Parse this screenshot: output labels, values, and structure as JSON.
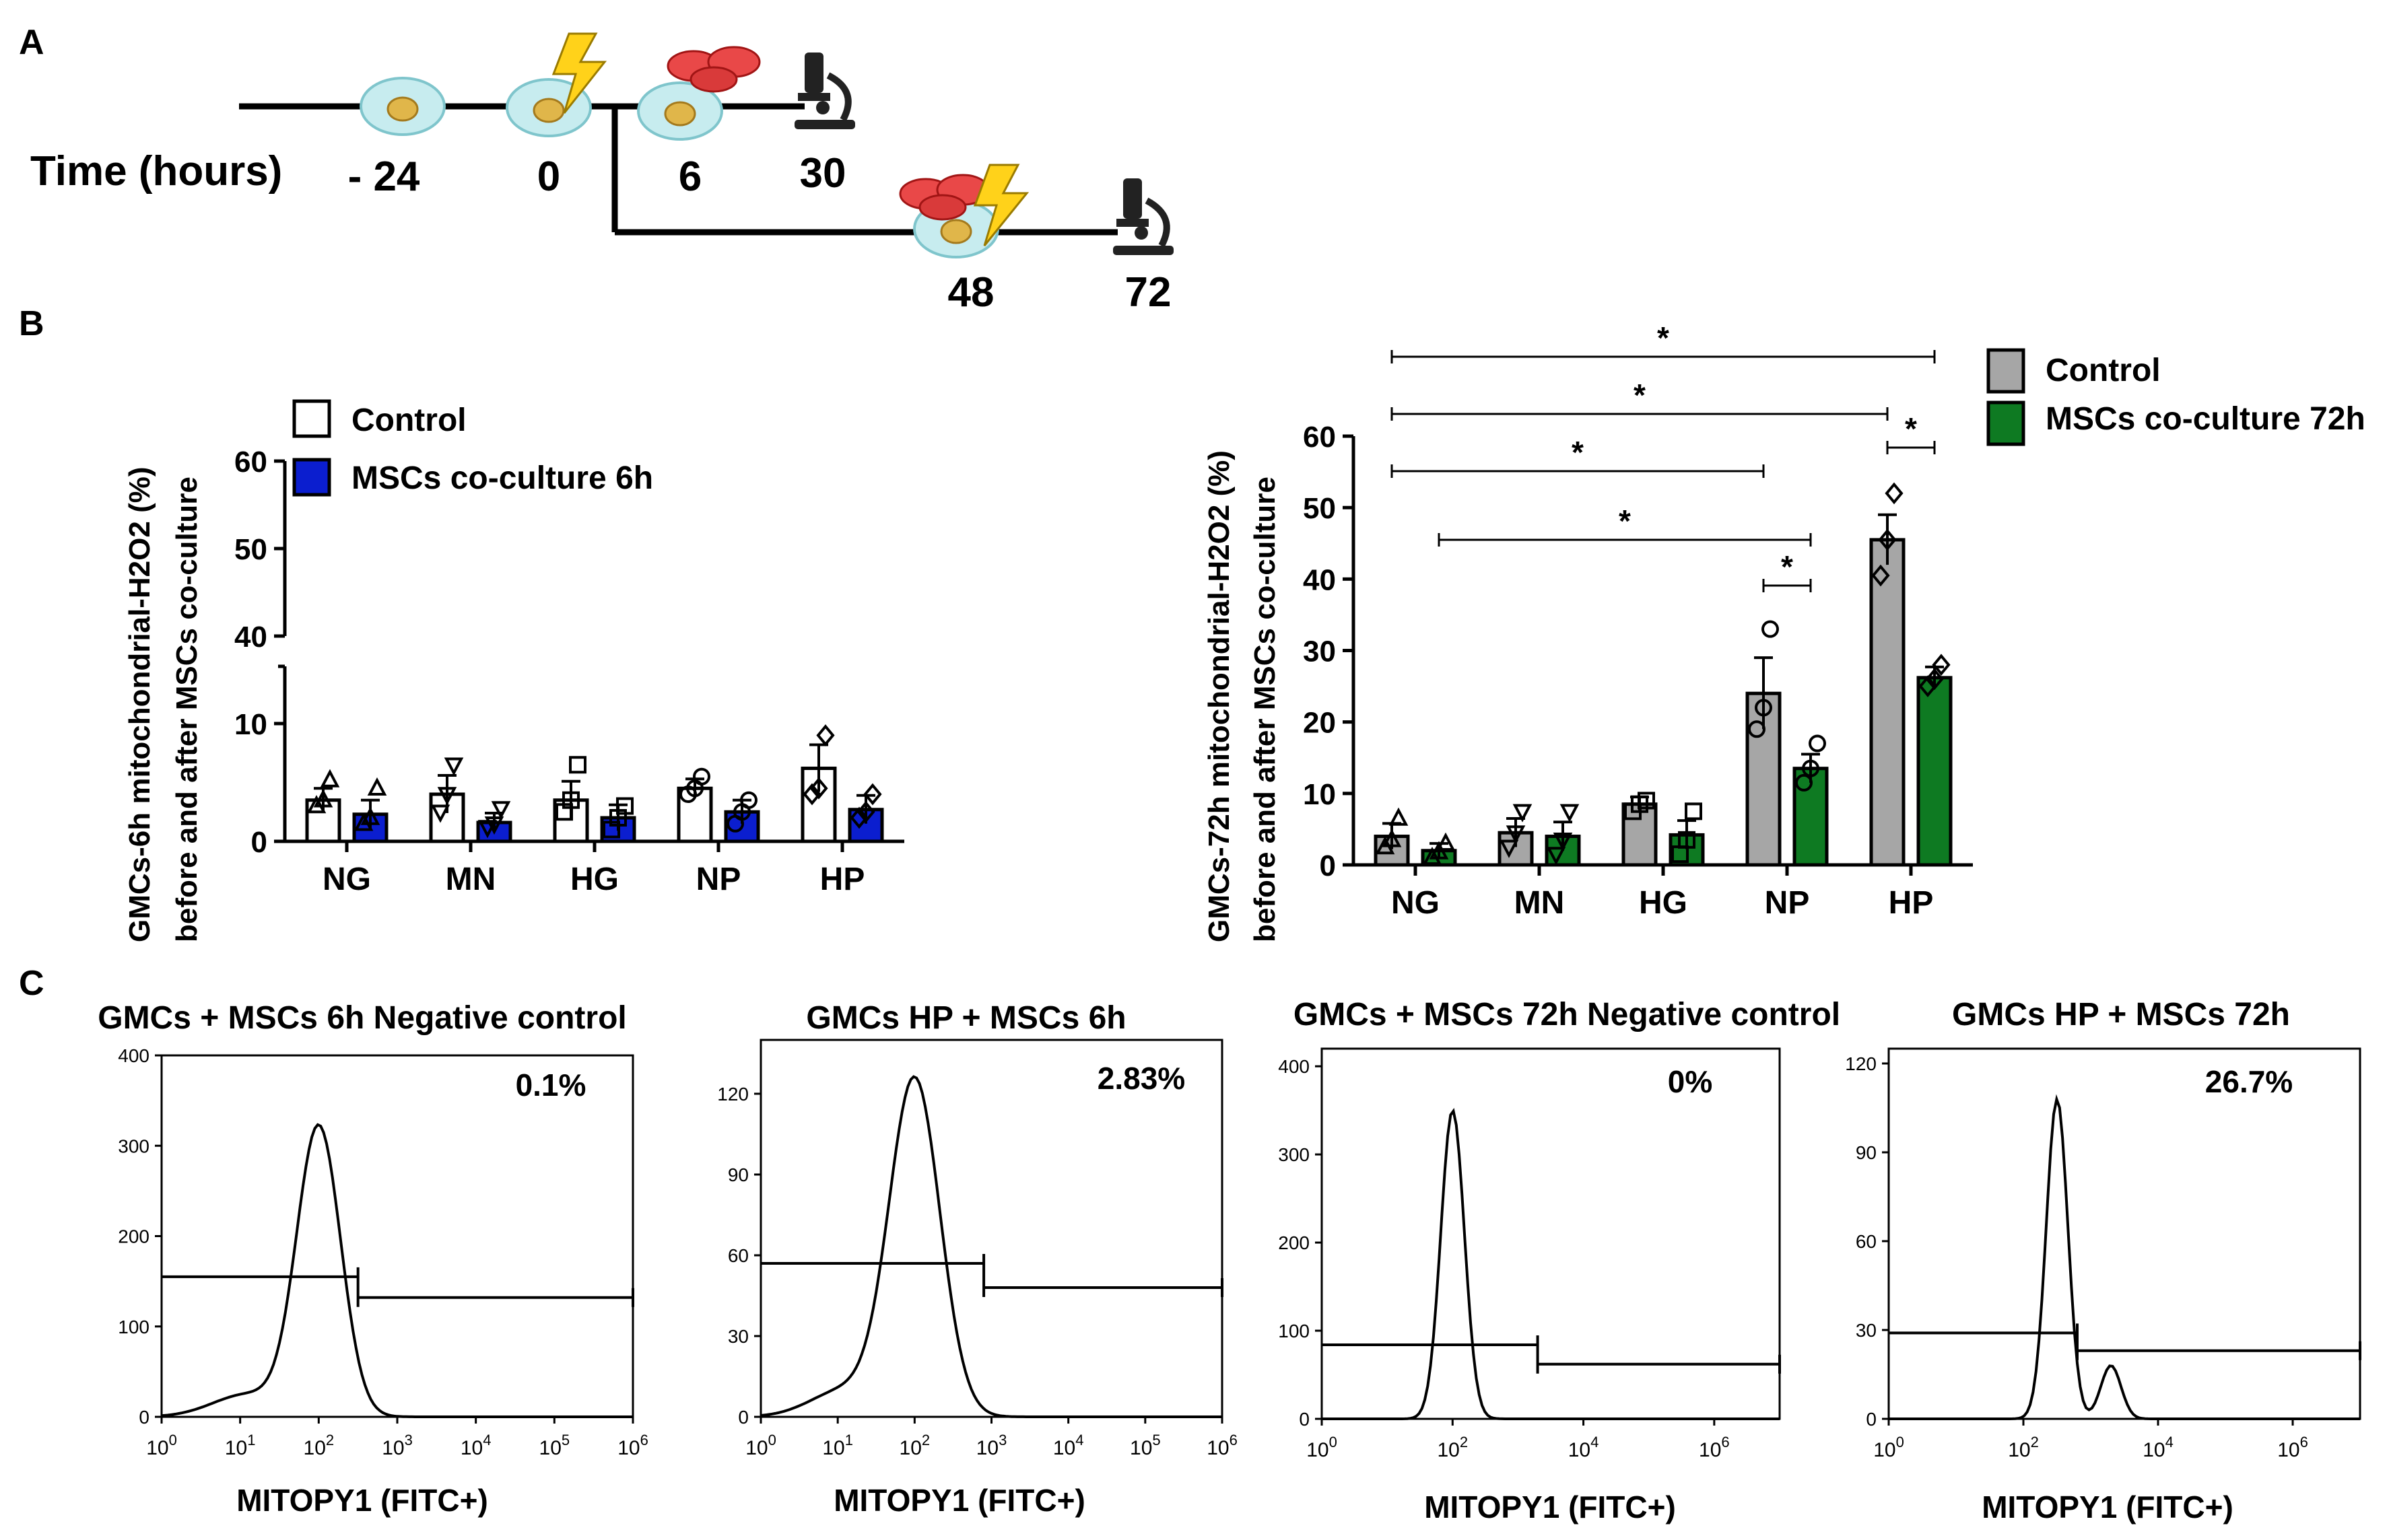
{
  "panel_labels": {
    "a": "A",
    "b": "B",
    "c": "C"
  },
  "timeline": {
    "label": "Time (hours)",
    "times": [
      "- 24",
      "0",
      "6",
      "30",
      "48",
      "72"
    ]
  },
  "chart_data": [
    {
      "type": "bar",
      "id": "B-left",
      "ylabel_line1": "GMCs-6h mitochondrial-H2O2 (%)",
      "ylabel_line2": "before and after MSCs co-culture",
      "categories": [
        "NG",
        "MN",
        "HG",
        "NP",
        "HP"
      ],
      "ylim": [
        0,
        60
      ],
      "axis_break": [
        12,
        38
      ],
      "ticks": [
        0,
        10,
        40,
        50,
        60
      ],
      "legend": [
        "Control",
        "MSCs co-culture 6h"
      ],
      "series": [
        {
          "name": "Control",
          "color": "#ffffff",
          "values": [
            3.5,
            4.0,
            3.5,
            4.5,
            6.2
          ],
          "errors": [
            1.0,
            1.6,
            1.6,
            0.8,
            2.0
          ],
          "points": [
            [
              3.0,
              3.5,
              5.2
            ],
            [
              2.5,
              4.0,
              6.5
            ],
            [
              2.5,
              3.5,
              6.5
            ],
            [
              4.0,
              4.5,
              5.5
            ],
            [
              4.0,
              4.5,
              9.0
            ]
          ],
          "marker": [
            "tri-up",
            "tri-down",
            "square",
            "circle",
            "diamond"
          ]
        },
        {
          "name": "MSCs co-culture 6h",
          "color": "#0b1ecf",
          "values": [
            2.3,
            1.6,
            2.0,
            2.5,
            2.7
          ],
          "errors": [
            1.2,
            0.8,
            1.1,
            1.0,
            1.2
          ],
          "points": [
            [
              1.5,
              2.0,
              4.5
            ],
            [
              1.2,
              1.5,
              2.8
            ],
            [
              1.0,
              2.0,
              3.0
            ],
            [
              1.5,
              2.5,
              3.5
            ],
            [
              2.0,
              2.5,
              4.0
            ]
          ],
          "marker": [
            "tri-up",
            "tri-down",
            "square",
            "circle",
            "diamond"
          ]
        }
      ]
    },
    {
      "type": "bar",
      "id": "B-right",
      "ylabel_line1": "GMCs-72h mitochondrial-H2O2 (%)",
      "ylabel_line2": "before and after MSCs co-culture",
      "categories": [
        "NG",
        "MN",
        "HG",
        "NP",
        "HP"
      ],
      "ylim": [
        0,
        60
      ],
      "ticks": [
        0,
        10,
        20,
        30,
        40,
        50,
        60
      ],
      "legend": [
        "Control",
        "MSCs co-culture 72h"
      ],
      "series": [
        {
          "name": "Control",
          "color": "#a6a6a6",
          "values": [
            4.0,
            4.5,
            8.5,
            24.0,
            45.5
          ],
          "errors": [
            1.8,
            2.0,
            1.0,
            5.0,
            3.5
          ],
          "points": [
            [
              2.5,
              3.5,
              6.5
            ],
            [
              2.5,
              4.5,
              7.5
            ],
            [
              7.5,
              8.5,
              9.0
            ],
            [
              19.0,
              22.0,
              33.0
            ],
            [
              40.5,
              45.5,
              52.0
            ]
          ],
          "marker": [
            "tri-up",
            "tri-down",
            "square",
            "circle",
            "diamond"
          ]
        },
        {
          "name": "MSCs co-culture 72h",
          "color": "#0e7a22",
          "values": [
            2.0,
            4.0,
            4.2,
            13.5,
            26.2
          ],
          "errors": [
            1.0,
            2.0,
            2.0,
            2.0,
            1.5
          ],
          "points": [
            [
              1.0,
              1.8,
              3.0
            ],
            [
              1.5,
              3.5,
              7.5
            ],
            [
              1.5,
              3.5,
              7.5
            ],
            [
              11.5,
              13.5,
              17.0
            ],
            [
              25.0,
              26.0,
              28.0
            ]
          ],
          "marker": [
            "tri-up",
            "tri-down",
            "square",
            "circle",
            "diamond"
          ]
        }
      ],
      "significance": [
        {
          "from": "NG-Control",
          "to": "HP-MSCs",
          "label": "*"
        },
        {
          "from": "NG-Control",
          "to": "HP-Control",
          "label": "*"
        },
        {
          "from": "NG-Control",
          "to": "NP-Control",
          "label": "*"
        },
        {
          "from": "NG-MSCs",
          "to": "NP-MSCs",
          "label": "*"
        },
        {
          "from": "NP-Control",
          "to": "NP-MSCs",
          "label": "*"
        },
        {
          "from": "HP-Control",
          "to": "HP-MSCs",
          "label": "*"
        }
      ]
    },
    {
      "type": "histogram",
      "id": "C-1",
      "title": "GMCs + MSCs 6h Negative control",
      "percent": "0.1%",
      "xlabel": "MITOPY1 (FITC+)",
      "yticks": [
        0,
        100,
        200,
        300,
        400
      ],
      "ymax": 400,
      "xdecades": [
        0,
        6
      ],
      "xticks": [
        0,
        1,
        2,
        3,
        4,
        5,
        6
      ],
      "peak_log": 2.0,
      "peak_height": 320
    },
    {
      "type": "histogram",
      "id": "C-2",
      "title": "GMCs HP + MSCs 6h",
      "percent": "2.83%",
      "xlabel": "MITOPY1 (FITC+)",
      "yticks": [
        0,
        30,
        60,
        90,
        120
      ],
      "ymax": 140,
      "xdecades": [
        0,
        6
      ],
      "xticks": [
        0,
        1,
        2,
        3,
        4,
        5,
        6
      ],
      "peak_log": 2.0,
      "peak_height": 125
    },
    {
      "type": "histogram",
      "id": "C-3",
      "title": "GMCs + MSCs 72h Negative control",
      "percent": "0%",
      "xlabel": "MITOPY1 (FITC+)",
      "yticks": [
        0,
        100,
        200,
        300,
        400
      ],
      "ymax": 420,
      "xdecades": [
        0,
        7
      ],
      "xticks": [
        0,
        2,
        4,
        6
      ],
      "peak_log": 2.0,
      "peak_height": 350
    },
    {
      "type": "histogram",
      "id": "C-4",
      "title": "GMCs HP + MSCs 72h",
      "percent": "26.7%",
      "xlabel": "MITOPY1 (FITC+)",
      "yticks": [
        0,
        30,
        60,
        90,
        120
      ],
      "ymax": 125,
      "xdecades": [
        0,
        7
      ],
      "xticks": [
        0,
        2,
        4,
        6
      ],
      "peak_log": 2.5,
      "peak_height": 108
    }
  ]
}
